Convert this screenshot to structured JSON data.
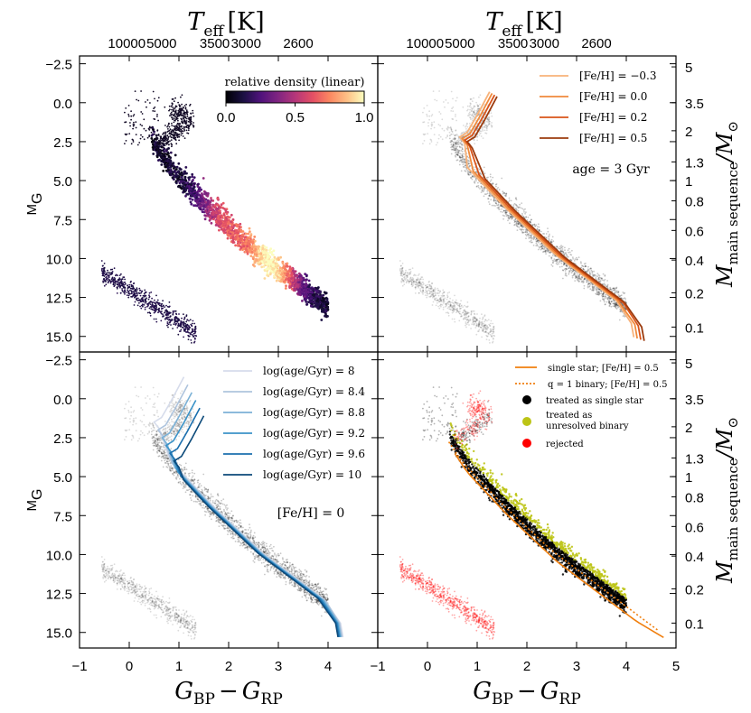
{
  "chart_data": {
    "type": "scatter",
    "title": "",
    "x_label_main": "G",
    "x_label_sub_left": "BP",
    "x_label_minus": "−",
    "x_label_sub_right": "RP",
    "y_label_main": "M",
    "y_label_sub": "G",
    "top_label_main": "T",
    "top_label_sub": "eff",
    "top_label_unit": "[K]",
    "right_label_main": "M",
    "right_label_sub": "main sequence",
    "right_label_tail": "/M",
    "right_label_sun": "⊙",
    "xlim": [
      -1,
      5
    ],
    "ylim_display": [
      16,
      -3
    ],
    "x_ticks": [
      "−1",
      "0",
      "1",
      "2",
      "3",
      "4"
    ],
    "x_ticks_last": "5",
    "y_ticks": [
      "−2.5",
      "0.0",
      "2.5",
      "5.0",
      "7.5",
      "10.0",
      "12.5",
      "15.0"
    ],
    "y_tick_values": [
      -2.5,
      0,
      2.5,
      5,
      7.5,
      10,
      12.5,
      15
    ],
    "teff_ticks": [
      {
        "label": "10000",
        "x": -0.05
      },
      {
        "label": "5000",
        "x": 0.65
      },
      {
        "label": "3500",
        "x": 1.72
      },
      {
        "label": "3000",
        "x": 2.35
      },
      {
        "label": "2600",
        "x": 3.4
      }
    ],
    "mass_ticks": [
      {
        "label": "5",
        "y": -2.3
      },
      {
        "label": "3.5",
        "y": 0.0
      },
      {
        "label": "2",
        "y": 1.8
      },
      {
        "label": "1.3",
        "y": 3.8
      },
      {
        "label": "1",
        "y": 5.0
      },
      {
        "label": "0.8",
        "y": 6.3
      },
      {
        "label": "0.6",
        "y": 8.2
      },
      {
        "label": "0.4",
        "y": 10.1
      },
      {
        "label": "0.2",
        "y": 12.2
      },
      {
        "label": "0.1",
        "y": 14.4
      }
    ],
    "panels": [
      {
        "id": "top-left",
        "colorbar": {
          "label": "relative density (linear)",
          "ticks": [
            "0.0",
            "0.5",
            "1.0"
          ],
          "colormap": "magma"
        }
      },
      {
        "id": "top-right",
        "annotation": "age = 3 Gyr",
        "series": [
          {
            "name": "[Fe/H] = −0.3",
            "color": "#f7b27a"
          },
          {
            "name": "[Fe/H] = 0.0",
            "color": "#f08a3c"
          },
          {
            "name": "[Fe/H] = 0.2",
            "color": "#d9541a"
          },
          {
            "name": "[Fe/H] = 0.5",
            "color": "#9c3b0e"
          }
        ]
      },
      {
        "id": "bottom-left",
        "annotation": "[Fe/H] = 0",
        "series": [
          {
            "name": "log(age/Gyr) = 8",
            "color": "#d6dceb"
          },
          {
            "name": "log(age/Gyr) = 8.4",
            "color": "#aec4dd"
          },
          {
            "name": "log(age/Gyr) = 8.8",
            "color": "#7bb1d6"
          },
          {
            "name": "log(age/Gyr) = 9.2",
            "color": "#3b93c8"
          },
          {
            "name": "log(age/Gyr) = 9.6",
            "color": "#1b6fae"
          },
          {
            "name": "log(age/Gyr) = 10",
            "color": "#0c4a7a"
          }
        ]
      },
      {
        "id": "bottom-right",
        "series": [
          {
            "name": "single star;  [Fe/H] = 0.5",
            "color": "#f07f0e",
            "style": "solid"
          },
          {
            "name": "q = 1 binary;  [Fe/H] = 0.5",
            "color": "#f07f0e",
            "style": "dotted"
          }
        ],
        "markers": [
          {
            "name": "treated as single star",
            "color": "#000000"
          },
          {
            "name": "treated as unresolved binary",
            "line1": "treated as",
            "line2": "unresolved binary",
            "color": "#bcc416"
          },
          {
            "name": "rejected",
            "color": "#ff0000"
          }
        ]
      }
    ]
  }
}
